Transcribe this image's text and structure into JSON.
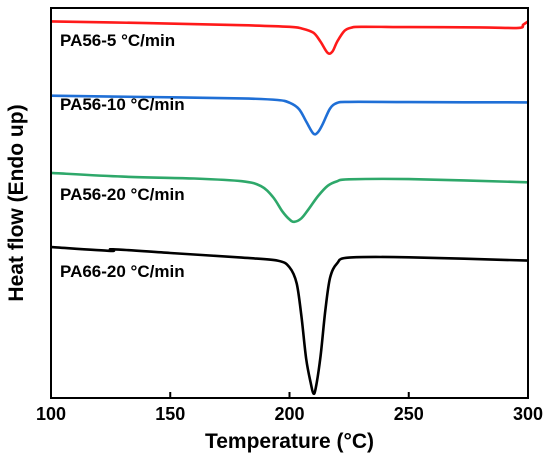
{
  "chart_data": {
    "type": "line",
    "xlabel": "Temperature (°C)",
    "ylabel": "Heat flow (Endo up)",
    "xlim": [
      100,
      300
    ],
    "xticks": [
      100,
      150,
      200,
      250,
      300
    ],
    "yticks_shown": false,
    "grid": false,
    "legend": "inline labels above each curve",
    "series": [
      {
        "name": "PA56-5 °C/min",
        "color": "#ff1a1a",
        "x": [
          100,
          140,
          180,
          200,
          205,
          210,
          213,
          216,
          218,
          220,
          223,
          226,
          230,
          250,
          280,
          296,
          298,
          300
        ],
        "y": [
          100.0,
          99.4,
          98.6,
          98.0,
          97.4,
          95.8,
          92.5,
          88.3,
          88.8,
          92.5,
          96.5,
          97.7,
          98.0,
          97.9,
          97.8,
          97.6,
          98.8,
          100.0
        ]
      },
      {
        "name": "PA56-10 °C/min",
        "color": "#1f6fd6",
        "x": [
          100,
          140,
          180,
          195,
          200,
          204,
          207,
          210,
          212,
          214,
          217,
          220,
          225,
          250,
          300
        ],
        "y": [
          72.4,
          71.9,
          71.4,
          70.8,
          69.8,
          67.4,
          62.8,
          58.3,
          58.9,
          62.0,
          67.6,
          69.7,
          70.1,
          70.0,
          69.9
        ]
      },
      {
        "name": "PA56-20 °C/min",
        "color": "#2ea86a",
        "x": [
          100,
          130,
          160,
          180,
          188,
          193,
          197,
          200,
          202,
          205,
          208,
          212,
          216,
          220,
          225,
          250,
          300
        ],
        "y": [
          43.7,
          42.3,
          41.6,
          40.6,
          38.8,
          34.8,
          29.4,
          26.4,
          25.5,
          26.8,
          30.2,
          35.1,
          38.9,
          40.6,
          41.3,
          41.4,
          40.2
        ]
      },
      {
        "name": "PA66-20 °C/min",
        "color": "#000000",
        "x": [
          100,
          125,
          126,
          150,
          180,
          195,
          200,
          203,
          205,
          207,
          209,
          210,
          211,
          213,
          215,
          217,
          220,
          225,
          250,
          300
        ],
        "y": [
          16.1,
          14.7,
          15.3,
          13.9,
          12.2,
          11.1,
          8.6,
          2.6,
          -9.5,
          -25.5,
          -34.9,
          -38.3,
          -36.4,
          -24.6,
          -7.5,
          4.6,
          10.1,
          12.2,
          12.3,
          11.1
        ]
      }
    ]
  }
}
